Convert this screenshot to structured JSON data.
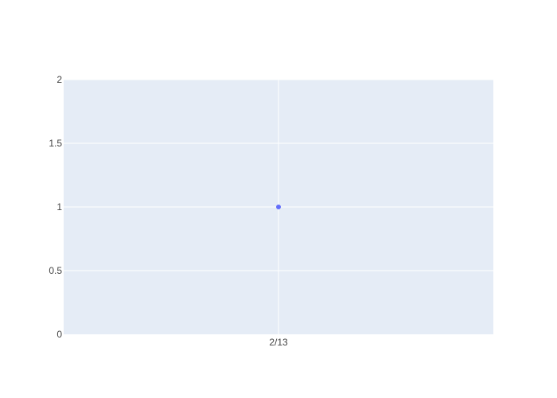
{
  "chart_data": {
    "type": "scatter",
    "title": "",
    "xlabel": "",
    "ylabel": "",
    "x": [
      "2/13"
    ],
    "series": [
      {
        "values": [
          1
        ],
        "color": "#636efa"
      }
    ],
    "ylim": [
      0,
      2
    ],
    "y_ticks": [
      {
        "value": 0,
        "label": "0"
      },
      {
        "value": 0.5,
        "label": "0.5"
      },
      {
        "value": 1,
        "label": "1"
      },
      {
        "value": 1.5,
        "label": "1.5"
      },
      {
        "value": 2,
        "label": "2"
      }
    ],
    "x_ticks": [
      {
        "value": "2/13",
        "label": "2/13"
      }
    ],
    "grid": true,
    "legend": "none",
    "plot_background": "#e5ecf6",
    "grid_color": "#ffffff"
  }
}
